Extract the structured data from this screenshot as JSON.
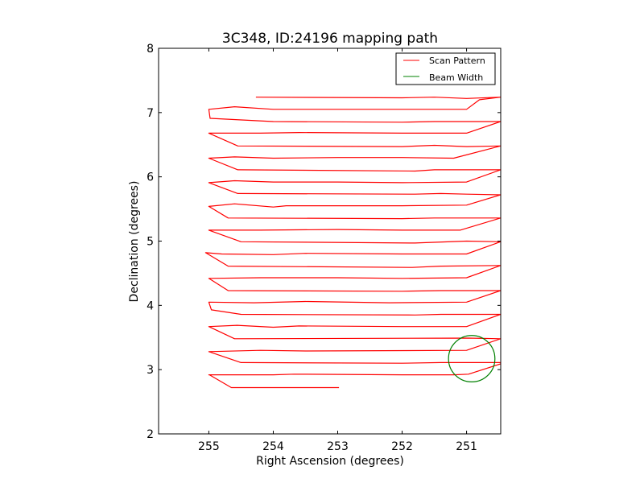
{
  "chart_data": {
    "type": "line",
    "title": "3C348, ID:24196 mapping path",
    "xlabel": "Right Ascension (degrees)",
    "ylabel": "Declination (degrees)",
    "xlim": [
      255.78,
      250.47
    ],
    "ylim": [
      2,
      8
    ],
    "xticks": [
      255,
      254,
      253,
      252,
      251
    ],
    "xtick_labels": [
      "255",
      "254",
      "253",
      "252",
      "251"
    ],
    "yticks": [
      2,
      3,
      4,
      5,
      6,
      7,
      8
    ],
    "ytick_labels": [
      "2",
      "3",
      "4",
      "5",
      "6",
      "7",
      "8"
    ],
    "grid": false,
    "legend_position": "top-right",
    "series": [
      {
        "name": "Scan Pattern",
        "kind": "line",
        "color": "#ff0000",
        "points": [
          [
            252.98,
            2.72
          ],
          [
            254.65,
            2.72
          ],
          [
            254.99,
            2.92
          ],
          [
            255.0,
            2.92
          ],
          [
            254.0,
            2.92
          ],
          [
            253.68,
            2.93
          ],
          [
            252.0,
            2.92
          ],
          [
            251.2,
            2.92
          ],
          [
            250.97,
            2.93
          ],
          [
            250.47,
            3.09
          ],
          [
            250.47,
            3.11
          ],
          [
            251.4,
            3.11
          ],
          [
            252.0,
            3.1
          ],
          [
            254.5,
            3.11
          ],
          [
            255.0,
            3.28
          ],
          [
            254.2,
            3.3
          ],
          [
            253.5,
            3.29
          ],
          [
            251.0,
            3.3
          ],
          [
            250.47,
            3.48
          ],
          [
            250.97,
            3.49
          ],
          [
            254.6,
            3.48
          ],
          [
            255.0,
            3.67
          ],
          [
            254.56,
            3.69
          ],
          [
            254.0,
            3.66
          ],
          [
            253.6,
            3.68
          ],
          [
            252.0,
            3.67
          ],
          [
            251.0,
            3.67
          ],
          [
            250.47,
            3.86
          ],
          [
            251.4,
            3.86
          ],
          [
            251.8,
            3.85
          ],
          [
            254.5,
            3.86
          ],
          [
            254.96,
            3.93
          ],
          [
            255.0,
            4.05
          ],
          [
            254.3,
            4.04
          ],
          [
            253.5,
            4.06
          ],
          [
            252.2,
            4.04
          ],
          [
            251.0,
            4.05
          ],
          [
            250.47,
            4.23
          ],
          [
            251.4,
            4.23
          ],
          [
            252.0,
            4.22
          ],
          [
            254.7,
            4.23
          ],
          [
            255.0,
            4.42
          ],
          [
            254.2,
            4.43
          ],
          [
            253.0,
            4.43
          ],
          [
            252.0,
            4.42
          ],
          [
            251.0,
            4.43
          ],
          [
            250.47,
            4.62
          ],
          [
            251.4,
            4.61
          ],
          [
            251.84,
            4.59
          ],
          [
            254.7,
            4.61
          ],
          [
            255.05,
            4.82
          ],
          [
            254.8,
            4.8
          ],
          [
            254.0,
            4.79
          ],
          [
            253.5,
            4.81
          ],
          [
            252.0,
            4.8
          ],
          [
            251.0,
            4.8
          ],
          [
            250.47,
            4.99
          ],
          [
            251.0,
            5.0
          ],
          [
            251.8,
            4.97
          ],
          [
            254.5,
            4.99
          ],
          [
            255.0,
            5.17
          ],
          [
            254.2,
            5.17
          ],
          [
            253.0,
            5.18
          ],
          [
            252.0,
            5.17
          ],
          [
            251.1,
            5.17
          ],
          [
            250.47,
            5.36
          ],
          [
            251.5,
            5.36
          ],
          [
            252.0,
            5.35
          ],
          [
            254.7,
            5.36
          ],
          [
            255.0,
            5.54
          ],
          [
            254.6,
            5.58
          ],
          [
            254.0,
            5.53
          ],
          [
            253.8,
            5.55
          ],
          [
            252.0,
            5.55
          ],
          [
            251.0,
            5.56
          ],
          [
            250.47,
            5.72
          ],
          [
            251.0,
            5.73
          ],
          [
            251.4,
            5.74
          ],
          [
            251.8,
            5.73
          ],
          [
            254.55,
            5.74
          ],
          [
            255.0,
            5.91
          ],
          [
            254.6,
            5.94
          ],
          [
            254.0,
            5.92
          ],
          [
            253.0,
            5.92
          ],
          [
            252.0,
            5.91
          ],
          [
            251.0,
            5.92
          ],
          [
            250.47,
            6.11
          ],
          [
            251.5,
            6.11
          ],
          [
            251.8,
            6.09
          ],
          [
            254.55,
            6.11
          ],
          [
            255.0,
            6.29
          ],
          [
            254.6,
            6.31
          ],
          [
            254.0,
            6.29
          ],
          [
            253.0,
            6.3
          ],
          [
            252.0,
            6.3
          ],
          [
            251.2,
            6.29
          ],
          [
            250.47,
            6.48
          ],
          [
            251.0,
            6.47
          ],
          [
            251.5,
            6.49
          ],
          [
            252.0,
            6.47
          ],
          [
            254.55,
            6.48
          ],
          [
            255.0,
            6.68
          ],
          [
            254.2,
            6.68
          ],
          [
            253.6,
            6.69
          ],
          [
            252.0,
            6.68
          ],
          [
            251.0,
            6.68
          ],
          [
            250.47,
            6.86
          ],
          [
            251.5,
            6.86
          ],
          [
            252.0,
            6.85
          ],
          [
            254.0,
            6.86
          ],
          [
            254.98,
            6.91
          ],
          [
            255.0,
            7.05
          ],
          [
            254.6,
            7.09
          ],
          [
            254.0,
            7.05
          ],
          [
            253.0,
            7.05
          ],
          [
            252.0,
            7.05
          ],
          [
            251.0,
            7.05
          ],
          [
            250.8,
            7.2
          ],
          [
            250.47,
            7.24
          ],
          [
            251.0,
            7.22
          ],
          [
            251.5,
            7.24
          ],
          [
            252.0,
            7.23
          ],
          [
            254.27,
            7.24
          ]
        ]
      },
      {
        "name": "Beam Width",
        "kind": "circle",
        "color": "#008000",
        "center": [
          250.92,
          3.17
        ],
        "radius": 0.36
      }
    ]
  }
}
